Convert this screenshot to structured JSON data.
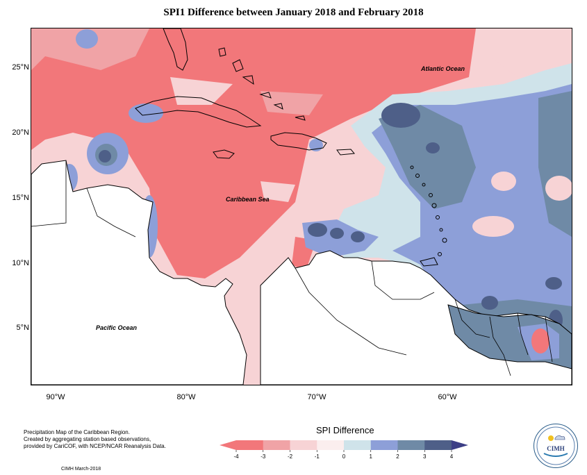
{
  "title": "SPI1 Difference between January 2018 and February 2018",
  "map": {
    "y_axis_labels": [
      "25°N",
      "20°N",
      "15°N",
      "10°N",
      "5°N"
    ],
    "x_axis_labels": [
      "90°W",
      "80°W",
      "70°W",
      "60°W"
    ],
    "places": {
      "atlantic": "Atlantic Ocean",
      "caribbean": "Caribbean Sea",
      "pacific": "Pacific Ocean"
    }
  },
  "footer": {
    "line1": "Precipitation Map of the Caribbean Region.",
    "line2": "Created by aggregating station based observations,",
    "line3": "provided by CariCOF, with NCEP/NCAR Reanalysis Data.",
    "credit": "CIMH March-2018"
  },
  "legend": {
    "title": "SPI Difference",
    "ticks": [
      "-4",
      "-3",
      "-2",
      "-1",
      "0",
      "1",
      "2",
      "3",
      "4"
    ],
    "colors": [
      "#f2777a",
      "#f0a3a6",
      "#f7d3d5",
      "#fbeeee",
      "#cfe3ea",
      "#8d9fd8",
      "#6f8aa6",
      "#4e5f88"
    ],
    "arrow_low_color": "#f2777a",
    "arrow_high_color": "#3c3f86"
  },
  "logo": {
    "text": "CIMH"
  }
}
